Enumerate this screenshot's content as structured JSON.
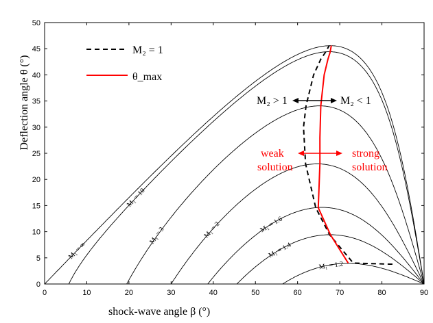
{
  "chart_data": {
    "type": "line",
    "xlabel": "shock-wave angle β (°)",
    "ylabel": "Deflection angle θ (°)",
    "xlim": [
      0,
      90
    ],
    "ylim": [
      0,
      50
    ],
    "xticks": [
      "0",
      "10",
      "20",
      "30",
      "40",
      "50",
      "60",
      "70",
      "80",
      "90"
    ],
    "yticks": [
      "0",
      "5",
      "10",
      "15",
      "20",
      "25",
      "30",
      "35",
      "40",
      "45",
      "50"
    ],
    "grid": false,
    "legend": {
      "placement": "top-left",
      "entries": [
        {
          "label": "M₂ = 1",
          "style": "dashed",
          "color": "#000000"
        },
        {
          "label": "θ_max",
          "style": "solid",
          "color": "#ff0000"
        }
      ]
    },
    "annotations": {
      "m2_greater": "M₂ > 1",
      "m2_less": "M₂ < 1",
      "weak_1": "weak",
      "weak_2": "solution",
      "strong_1": "strong",
      "strong_2": "solution"
    },
    "series": [
      {
        "name": "M₁ = 1.2",
        "mach": 1.2
      },
      {
        "name": "M₁ = 1.4",
        "mach": 1.4
      },
      {
        "name": "M₁ = 1.6",
        "mach": 1.6
      },
      {
        "name": "M₁ = 2",
        "mach": 2
      },
      {
        "name": "M₁ = 3",
        "mach": 3
      },
      {
        "name": "M₁ = 10",
        "mach": 10
      },
      {
        "name": "M₁ = ∞",
        "mach": 1000
      }
    ],
    "sonic_line": {
      "x": [
        82.5,
        81.8,
        73.2,
        67.6,
        64.3,
        61.9,
        61.4,
        62.0,
        63.8,
        65.5,
        66.6,
        67.5
      ],
      "y": [
        3.8,
        3.8,
        4.0,
        9.4,
        14.6,
        23.0,
        30.0,
        34.1,
        40.0,
        43.0,
        44.3,
        45.6
      ]
    },
    "theta_max_line": {
      "x": [
        72.0,
        67.8,
        64.9,
        65.3,
        65.3,
        65.5,
        66.3,
        67.2,
        67.7,
        68.0
      ],
      "y": [
        4.0,
        9.4,
        14.6,
        23.0,
        28.0,
        34.1,
        40.0,
        43.0,
        44.3,
        45.6
      ]
    },
    "line_color": "#000000",
    "accent_color": "#ff0000"
  }
}
